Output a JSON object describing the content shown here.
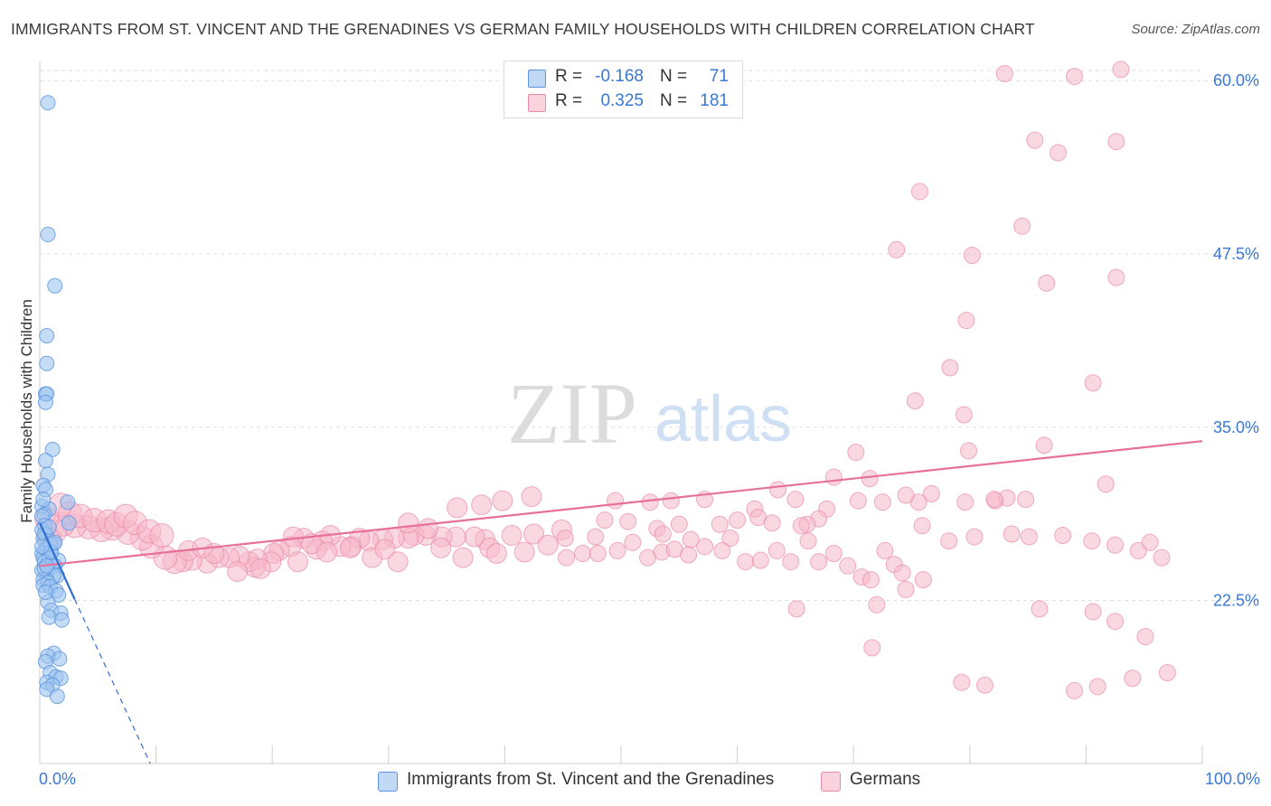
{
  "header": {
    "title": "IMMIGRANTS FROM ST. VINCENT AND THE GRENADINES VS GERMAN FAMILY HOUSEHOLDS WITH CHILDREN CORRELATION CHART",
    "source": "Source: ZipAtlas.com"
  },
  "watermark": {
    "zip": "ZIP",
    "atlas": "atlas"
  },
  "legend_top": {
    "rows": [
      {
        "r_label": "R =",
        "r_value": "-0.168",
        "n_label": "N =",
        "n_value": "71",
        "color": "#9fc4f0"
      },
      {
        "r_label": "R =",
        "r_value": "0.325",
        "n_label": "N =",
        "n_value": "181",
        "color": "#f6b8cb"
      }
    ]
  },
  "legend_bottom": [
    {
      "label": "Immigrants from St. Vincent and the Grenadines",
      "color": "#9fc4f0"
    },
    {
      "label": "Germans",
      "color": "#f6b8cb"
    }
  ],
  "colors": {
    "blue_fill": "#9fc4f0",
    "blue_stroke": "#5b93dd",
    "blue_line": "#2f6fd0",
    "pink_fill": "#f6b8cb",
    "pink_stroke": "#e98aa8",
    "pink_line": "#e7709a",
    "grid": "#dddddd",
    "axis_text": "#3a78d4"
  },
  "chart_data": {
    "type": "scatter",
    "title": "IMMIGRANTS FROM ST. VINCENT AND THE GRENADINES VS GERMAN FAMILY HOUSEHOLDS WITH CHILDREN CORRELATION CHART",
    "xlabel": "",
    "ylabel": "Family Households with Children",
    "x_tick_labels": [
      "0.0%",
      "100.0%"
    ],
    "y_tick_labels": [
      "22.5%",
      "35.0%",
      "47.5%",
      "60.0%"
    ],
    "y_ticks": [
      22.5,
      35.0,
      47.5,
      60.0
    ],
    "xlim": [
      0,
      100
    ],
    "ylim": [
      10.75,
      61.25
    ],
    "grid": true,
    "legend_position": "top-center",
    "series": [
      {
        "name": "Immigrants from St. Vincent and the Grenadines",
        "r": -0.168,
        "n": 71,
        "trend": {
          "x1": 0,
          "y1": 28.1,
          "x2": 3.0,
          "y2": 22.6,
          "dash_x2": 9.5,
          "dash_y2": 10.75
        },
        "points": [
          [
            0.7,
            58.4
          ],
          [
            0.7,
            48.9
          ],
          [
            1.3,
            45.2
          ],
          [
            0.6,
            41.6
          ],
          [
            0.6,
            39.6
          ],
          [
            0.5,
            37.4
          ],
          [
            0.6,
            37.4
          ],
          [
            0.5,
            36.8
          ],
          [
            1.1,
            33.4
          ],
          [
            0.5,
            32.6
          ],
          [
            0.7,
            31.6
          ],
          [
            0.3,
            30.8
          ],
          [
            0.5,
            30.5
          ],
          [
            2.4,
            29.6
          ],
          [
            0.2,
            29.3
          ],
          [
            0.8,
            29.1
          ],
          [
            0.4,
            28.7
          ],
          [
            2.5,
            28.1
          ],
          [
            0.2,
            28.6
          ],
          [
            0.4,
            27.9
          ],
          [
            0.2,
            27.6
          ],
          [
            0.6,
            27.2
          ],
          [
            0.3,
            27.0
          ],
          [
            1.2,
            26.6
          ],
          [
            0.6,
            26.2
          ],
          [
            0.9,
            25.9
          ],
          [
            0.2,
            25.9
          ],
          [
            0.5,
            26.2
          ],
          [
            0.3,
            25.6
          ],
          [
            0.8,
            25.6
          ],
          [
            1.6,
            25.4
          ],
          [
            0.4,
            25.3
          ],
          [
            1.0,
            25.1
          ],
          [
            1.3,
            25.0
          ],
          [
            0.7,
            24.7
          ],
          [
            0.2,
            24.7
          ],
          [
            1.5,
            24.3
          ],
          [
            1.2,
            24.3
          ],
          [
            0.6,
            24.0
          ],
          [
            0.3,
            24.0
          ],
          [
            0.7,
            23.8
          ],
          [
            0.3,
            23.6
          ],
          [
            0.9,
            23.5
          ],
          [
            1.4,
            23.2
          ],
          [
            1.6,
            22.9
          ],
          [
            0.7,
            22.4
          ],
          [
            1.0,
            21.8
          ],
          [
            1.8,
            21.6
          ],
          [
            0.8,
            21.3
          ],
          [
            1.9,
            21.1
          ],
          [
            1.2,
            18.7
          ],
          [
            0.7,
            18.5
          ],
          [
            1.7,
            18.3
          ],
          [
            0.5,
            18.1
          ],
          [
            0.9,
            17.3
          ],
          [
            1.4,
            17.0
          ],
          [
            1.8,
            16.9
          ],
          [
            0.6,
            16.6
          ],
          [
            1.1,
            16.4
          ],
          [
            0.6,
            16.1
          ],
          [
            1.5,
            15.6
          ],
          [
            0.4,
            27.3
          ],
          [
            0.9,
            26.6
          ],
          [
            0.3,
            29.8
          ],
          [
            0.5,
            23.1
          ],
          [
            1.0,
            26.0
          ],
          [
            0.4,
            24.8
          ],
          [
            0.8,
            27.8
          ],
          [
            0.6,
            25.0
          ],
          [
            1.3,
            26.7
          ],
          [
            0.2,
            26.4
          ]
        ]
      },
      {
        "name": "Germans",
        "r": 0.325,
        "n": 181,
        "trend": {
          "x1": 0,
          "y1": 25.0,
          "x2": 100,
          "y2": 34.0
        },
        "points": [
          [
            83,
            60.5
          ],
          [
            89,
            60.3
          ],
          [
            93,
            60.8
          ],
          [
            85.6,
            55.7
          ],
          [
            92.6,
            55.6
          ],
          [
            87.6,
            54.8
          ],
          [
            75.7,
            52.0
          ],
          [
            84.5,
            49.5
          ],
          [
            73.7,
            47.8
          ],
          [
            80.2,
            47.4
          ],
          [
            86.6,
            45.4
          ],
          [
            92.6,
            45.8
          ],
          [
            79.7,
            42.7
          ],
          [
            78.3,
            39.3
          ],
          [
            90.6,
            38.2
          ],
          [
            75.3,
            36.9
          ],
          [
            79.5,
            35.9
          ],
          [
            70.2,
            33.2
          ],
          [
            79.9,
            33.3
          ],
          [
            86.4,
            33.7
          ],
          [
            68.3,
            31.4
          ],
          [
            71.4,
            31.3
          ],
          [
            91.7,
            30.9
          ],
          [
            63.5,
            30.5
          ],
          [
            76.7,
            30.2
          ],
          [
            70.4,
            29.7
          ],
          [
            84.8,
            29.8
          ],
          [
            72.5,
            29.6
          ],
          [
            75.6,
            29.6
          ],
          [
            74.5,
            30.1
          ],
          [
            79.6,
            29.6
          ],
          [
            82.2,
            29.7
          ],
          [
            83.2,
            29.9
          ],
          [
            65,
            29.8
          ],
          [
            67.7,
            29.1
          ],
          [
            57.2,
            29.8
          ],
          [
            61.5,
            29.1
          ],
          [
            54.3,
            29.7
          ],
          [
            52.5,
            29.6
          ],
          [
            49.5,
            29.7
          ],
          [
            42.3,
            30.0
          ],
          [
            39.8,
            29.7
          ],
          [
            38,
            29.4
          ],
          [
            35.9,
            29.2
          ],
          [
            67,
            28.4
          ],
          [
            66,
            28.0
          ],
          [
            58.5,
            28.0
          ],
          [
            48.6,
            28.3
          ],
          [
            55,
            28.0
          ],
          [
            60,
            28.3
          ],
          [
            61.8,
            28.5
          ],
          [
            63,
            28.1
          ],
          [
            65.5,
            27.9
          ],
          [
            44.9,
            27.6
          ],
          [
            45.2,
            27.0
          ],
          [
            50.6,
            28.2
          ],
          [
            53.1,
            27.7
          ],
          [
            56,
            26.9
          ],
          [
            59.4,
            27.0
          ],
          [
            53.6,
            27.3
          ],
          [
            47.8,
            27.1
          ],
          [
            42.5,
            27.3
          ],
          [
            40.6,
            27.2
          ],
          [
            38.3,
            26.9
          ],
          [
            37.4,
            27.1
          ],
          [
            35.8,
            27.1
          ],
          [
            34.6,
            27.1
          ],
          [
            33.2,
            27.2
          ],
          [
            32.2,
            27.2
          ],
          [
            31.7,
            27.0
          ],
          [
            30.5,
            27.0
          ],
          [
            29.5,
            26.9
          ],
          [
            28.3,
            26.8
          ],
          [
            27.5,
            27.0
          ],
          [
            26.8,
            26.4
          ],
          [
            25.9,
            26.4
          ],
          [
            25.0,
            27.2
          ],
          [
            24.3,
            26.8
          ],
          [
            23.8,
            26.2
          ],
          [
            22.7,
            27.0
          ],
          [
            21.8,
            27.1
          ],
          [
            21.6,
            26.4
          ],
          [
            20.6,
            26.1
          ],
          [
            20.1,
            25.9
          ],
          [
            19.9,
            25.3
          ],
          [
            18.7,
            25.5
          ],
          [
            18.5,
            24.9
          ],
          [
            18.0,
            25.3
          ],
          [
            17.2,
            25.7
          ],
          [
            16.3,
            25.6
          ],
          [
            15.4,
            25.6
          ],
          [
            14.4,
            25.2
          ],
          [
            13.1,
            25.4
          ],
          [
            12.3,
            25.3
          ],
          [
            11.6,
            25.3
          ],
          [
            10.8,
            25.6
          ],
          [
            9.6,
            26.4
          ],
          [
            8.8,
            27.0
          ],
          [
            7.6,
            27.4
          ],
          [
            6.2,
            27.7
          ],
          [
            5.3,
            27.6
          ],
          [
            4.2,
            27.8
          ],
          [
            3.0,
            27.9
          ],
          [
            2.0,
            28.0
          ],
          [
            1.3,
            27.5
          ],
          [
            0.8,
            26.9
          ],
          [
            0.6,
            28.4
          ],
          [
            1.8,
            29.4
          ],
          [
            2.6,
            28.8
          ],
          [
            3.5,
            28.6
          ],
          [
            4.7,
            28.3
          ],
          [
            5.9,
            28.2
          ],
          [
            6.6,
            28.0
          ],
          [
            7.4,
            28.6
          ],
          [
            8.2,
            28.1
          ],
          [
            9.4,
            27.5
          ],
          [
            10.5,
            27.2
          ],
          [
            12.8,
            26.1
          ],
          [
            14.0,
            26.3
          ],
          [
            15.0,
            25.9
          ],
          [
            17.0,
            24.6
          ],
          [
            19.0,
            24.8
          ],
          [
            22.2,
            25.3
          ],
          [
            23.4,
            26.6
          ],
          [
            24.7,
            26.0
          ],
          [
            26.7,
            26.3
          ],
          [
            28.6,
            25.6
          ],
          [
            29.7,
            26.2
          ],
          [
            30.8,
            25.3
          ],
          [
            31.7,
            28.1
          ],
          [
            33.4,
            27.7
          ],
          [
            34.5,
            26.3
          ],
          [
            36.4,
            25.6
          ],
          [
            38.7,
            26.3
          ],
          [
            39.3,
            25.9
          ],
          [
            41.7,
            26.0
          ],
          [
            43.7,
            26.5
          ],
          [
            45.3,
            25.6
          ],
          [
            46.7,
            25.9
          ],
          [
            48.0,
            25.9
          ],
          [
            49.7,
            26.1
          ],
          [
            51.0,
            26.7
          ],
          [
            52.3,
            25.6
          ],
          [
            53.5,
            26.0
          ],
          [
            54.6,
            26.2
          ],
          [
            55.8,
            25.8
          ],
          [
            57.2,
            26.4
          ],
          [
            58.7,
            26.1
          ],
          [
            60.7,
            25.3
          ],
          [
            62.0,
            25.4
          ],
          [
            63.4,
            26.1
          ],
          [
            64.6,
            25.3
          ],
          [
            66.1,
            26.8
          ],
          [
            67.0,
            25.3
          ],
          [
            68.3,
            25.9
          ],
          [
            69.5,
            25.0
          ],
          [
            70.7,
            24.2
          ],
          [
            71.5,
            24.0
          ],
          [
            72.7,
            26.1
          ],
          [
            73.5,
            25.1
          ],
          [
            74.2,
            24.5
          ],
          [
            75.9,
            27.9
          ],
          [
            78.2,
            26.8
          ],
          [
            80.4,
            27.1
          ],
          [
            82.1,
            29.8
          ],
          [
            83.6,
            27.3
          ],
          [
            85.1,
            27.1
          ],
          [
            88.0,
            27.2
          ],
          [
            90.5,
            26.8
          ],
          [
            92.5,
            26.5
          ],
          [
            94.5,
            26.1
          ],
          [
            95.5,
            26.7
          ],
          [
            96.5,
            25.6
          ],
          [
            86.0,
            21.9
          ],
          [
            90.6,
            21.7
          ],
          [
            92.5,
            21.0
          ],
          [
            95.1,
            19.9
          ],
          [
            97.0,
            17.3
          ],
          [
            94.0,
            16.9
          ],
          [
            91.0,
            16.3
          ],
          [
            89.0,
            16.0
          ],
          [
            81.3,
            16.4
          ],
          [
            79.3,
            16.6
          ],
          [
            71.6,
            19.1
          ],
          [
            65.1,
            21.9
          ],
          [
            72.0,
            22.2
          ],
          [
            74.5,
            23.3
          ],
          [
            76.0,
            24.0
          ]
        ]
      }
    ]
  }
}
